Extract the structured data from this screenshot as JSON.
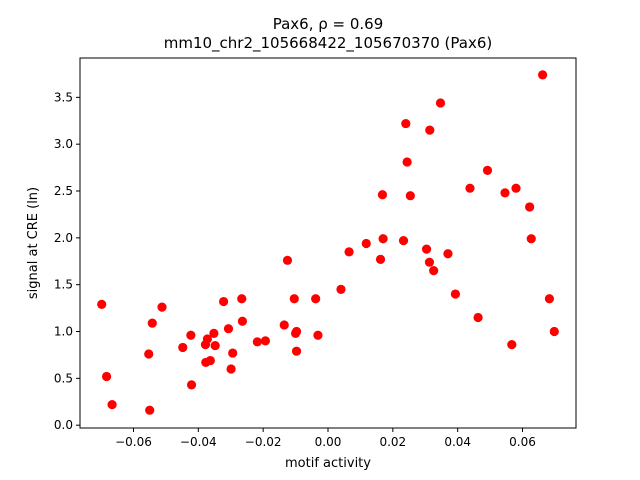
{
  "chart_data": {
    "type": "scatter",
    "title_line1": "Pax6, ρ = 0.69",
    "title_line2": "mm10_chr2_105668422_105670370 (Pax6)",
    "xlabel": "motif activity",
    "ylabel": "signal at CRE (ln)",
    "xlim": [
      -0.0765,
      0.0765
    ],
    "ylim": [
      -0.03,
      3.92
    ],
    "xticks": [
      -0.06,
      -0.04,
      -0.02,
      0.0,
      0.02,
      0.04,
      0.06
    ],
    "xtick_labels": [
      "−0.06",
      "−0.04",
      "−0.02",
      "0.00",
      "0.02",
      "0.04",
      "0.06"
    ],
    "yticks": [
      0.0,
      0.5,
      1.0,
      1.5,
      2.0,
      2.5,
      3.0,
      3.5
    ],
    "ytick_labels": [
      "0.0",
      "0.5",
      "1.0",
      "1.5",
      "2.0",
      "2.5",
      "3.0",
      "3.5"
    ],
    "grid": false,
    "point_color": "#ff0000",
    "points": [
      [
        -0.0698,
        1.29
      ],
      [
        -0.0683,
        0.52
      ],
      [
        -0.0666,
        0.22
      ],
      [
        -0.0553,
        0.76
      ],
      [
        -0.055,
        0.16
      ],
      [
        -0.0542,
        1.09
      ],
      [
        -0.0512,
        1.26
      ],
      [
        -0.0448,
        0.83
      ],
      [
        -0.0421,
        0.43
      ],
      [
        -0.0423,
        0.96
      ],
      [
        -0.0378,
        0.86
      ],
      [
        -0.0377,
        0.67
      ],
      [
        -0.0372,
        0.92
      ],
      [
        -0.0363,
        0.69
      ],
      [
        -0.0352,
        0.98
      ],
      [
        -0.0348,
        0.85
      ],
      [
        -0.0322,
        1.32
      ],
      [
        -0.0307,
        1.03
      ],
      [
        -0.0299,
        0.6
      ],
      [
        -0.0294,
        0.77
      ],
      [
        -0.0266,
        1.35
      ],
      [
        -0.0264,
        1.11
      ],
      [
        -0.0218,
        0.89
      ],
      [
        -0.0193,
        0.9
      ],
      [
        -0.0135,
        1.07
      ],
      [
        -0.0125,
        1.76
      ],
      [
        -0.0104,
        1.35
      ],
      [
        -0.01,
        0.98
      ],
      [
        -0.0097,
        1.0
      ],
      [
        -0.0097,
        0.79
      ],
      [
        -0.0038,
        1.35
      ],
      [
        -0.0031,
        0.96
      ],
      [
        0.004,
        1.45
      ],
      [
        0.0065,
        1.85
      ],
      [
        0.0118,
        1.94
      ],
      [
        0.0162,
        1.77
      ],
      [
        0.0168,
        2.46
      ],
      [
        0.017,
        1.99
      ],
      [
        0.0233,
        1.97
      ],
      [
        0.024,
        3.22
      ],
      [
        0.0244,
        2.81
      ],
      [
        0.0254,
        2.45
      ],
      [
        0.0304,
        1.88
      ],
      [
        0.0314,
        3.15
      ],
      [
        0.0313,
        1.74
      ],
      [
        0.0326,
        1.65
      ],
      [
        0.0347,
        3.44
      ],
      [
        0.037,
        1.83
      ],
      [
        0.0393,
        1.4
      ],
      [
        0.0438,
        2.53
      ],
      [
        0.0463,
        1.15
      ],
      [
        0.0492,
        2.72
      ],
      [
        0.0546,
        2.48
      ],
      [
        0.0567,
        0.86
      ],
      [
        0.058,
        2.53
      ],
      [
        0.0622,
        2.33
      ],
      [
        0.0627,
        1.99
      ],
      [
        0.0662,
        3.74
      ],
      [
        0.0683,
        1.35
      ],
      [
        0.0698,
        1.0
      ]
    ]
  }
}
